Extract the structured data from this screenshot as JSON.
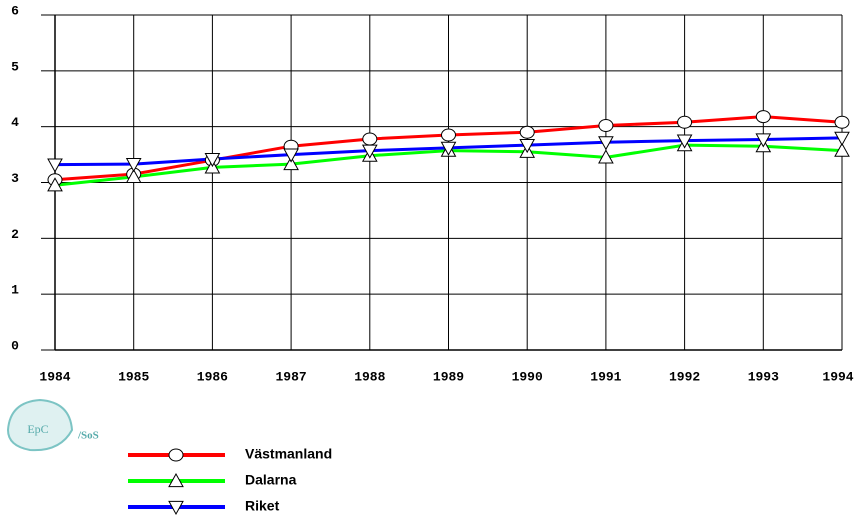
{
  "chart_data": {
    "type": "line",
    "x": [
      1984,
      1985,
      1986,
      1987,
      1988,
      1989,
      1990,
      1991,
      1992,
      1993,
      1994
    ],
    "series": [
      {
        "name": "Västmanland",
        "color": "#ff0000",
        "marker": "circle",
        "values": [
          3.05,
          3.15,
          3.4,
          3.65,
          3.78,
          3.85,
          3.9,
          4.02,
          4.08,
          4.18,
          4.08
        ]
      },
      {
        "name": "Dalarna",
        "color": "#00ff00",
        "marker": "triangle-up",
        "values": [
          2.95,
          3.1,
          3.27,
          3.33,
          3.48,
          3.57,
          3.55,
          3.45,
          3.67,
          3.65,
          3.57
        ]
      },
      {
        "name": "Riket",
        "color": "#0000ff",
        "marker": "triangle-down",
        "values": [
          3.32,
          3.33,
          3.42,
          3.5,
          3.57,
          3.62,
          3.67,
          3.72,
          3.75,
          3.77,
          3.8
        ]
      }
    ],
    "xlim": [
      1984,
      1994
    ],
    "xticks": [
      1984,
      1985,
      1986,
      1987,
      1988,
      1989,
      1990,
      1991,
      1992,
      1993,
      1994
    ],
    "ylim": [
      0,
      6
    ],
    "yticks": [
      0,
      1,
      2,
      3,
      4,
      5,
      6
    ],
    "grid": true,
    "logo": "EpC",
    "logo_suffix": "/SoS"
  }
}
